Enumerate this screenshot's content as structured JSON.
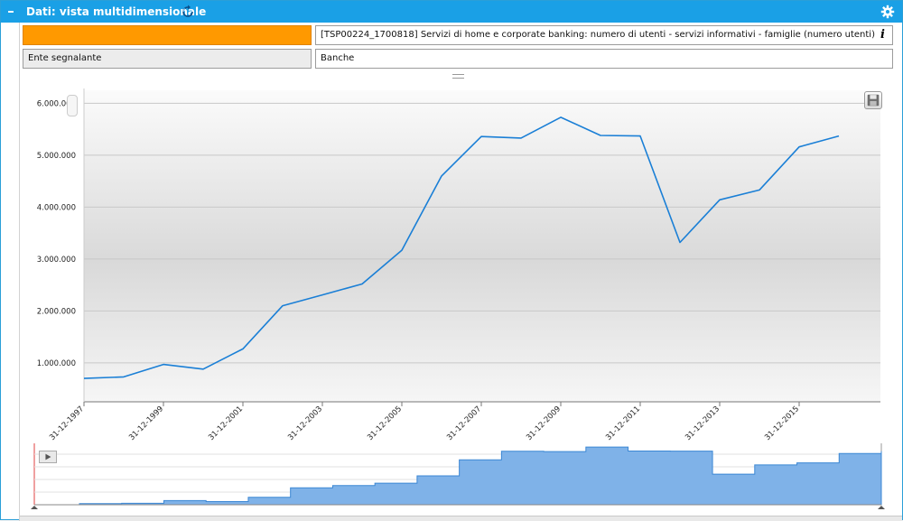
{
  "panel": {
    "title": "Dati: vista multidimensionale",
    "collapse_glyph": "–"
  },
  "dimensions": {
    "orange_value": "",
    "series_label": "[TSP00224_1700818] Servizi di home e corporate banking: numero di utenti - servizi informativi - famiglie (numero utenti)",
    "info_glyph": "i",
    "ente_label": "Ente segnalante",
    "ente_value": "Banche"
  },
  "icons": {
    "collapse": "collapse-icon",
    "refresh": "refresh-icon",
    "settings": "gear-icon",
    "info": "info-icon",
    "save": "save-icon",
    "play": "play-icon"
  },
  "colors": {
    "title_bar": "#1aa0e6",
    "dimension_highlight": "#ff9900",
    "series_line": "#1a7fd6",
    "navigator_fill": "#7fb2e8"
  },
  "chart_data": {
    "type": "line",
    "x": [
      "31-12-1997",
      "31-12-1998",
      "31-12-1999",
      "31-12-2000",
      "31-12-2001",
      "31-12-2002",
      "31-12-2003",
      "31-12-2004",
      "31-12-2005",
      "31-12-2006",
      "31-12-2007",
      "31-12-2008",
      "31-12-2009",
      "31-12-2010",
      "31-12-2011",
      "31-12-2012",
      "31-12-2013",
      "31-12-2014",
      "31-12-2015",
      "31-12-2016"
    ],
    "values": [
      700000,
      730000,
      970000,
      880000,
      1270000,
      2100000,
      2310000,
      2520000,
      3170000,
      4600000,
      5360000,
      5330000,
      5730000,
      5380000,
      5370000,
      3320000,
      4140000,
      4330000,
      5160000,
      5370000
    ],
    "x_tick_labels": [
      "31-12-1997",
      "31-12-1999",
      "31-12-2001",
      "31-12-2003",
      "31-12-2005",
      "31-12-2007",
      "31-12-2009",
      "31-12-2011",
      "31-12-2013",
      "31-12-2015"
    ],
    "y_ticks": [
      1000000,
      2000000,
      3000000,
      4000000,
      5000000,
      6000000
    ],
    "y_tick_labels": [
      "1.000.000",
      "2.000.000",
      "3.000.000",
      "4.000.000",
      "5.000.000",
      "6.000.000"
    ],
    "ylim": [
      250000,
      6250000
    ],
    "grid": true,
    "legend": "none",
    "title": "",
    "xlabel": "",
    "ylabel": "",
    "navigator": "step-area"
  }
}
